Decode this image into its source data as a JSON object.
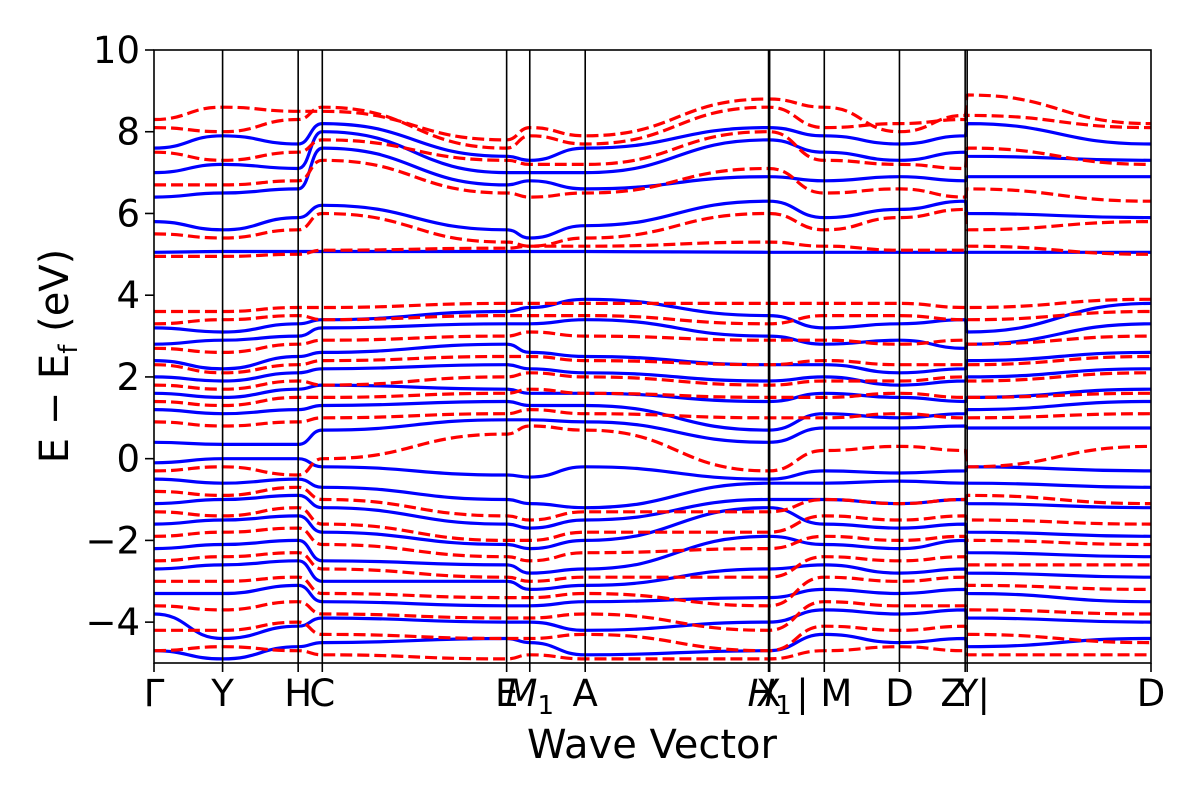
{
  "chart_data": {
    "type": "line",
    "title": "",
    "xlabel": "Wave Vector",
    "ylabel": "E − E",
    "ylabel_sub": "f",
    "ylabel_unit": " (eV)",
    "ylim": [
      -5,
      10
    ],
    "yticks": [
      -4,
      -2,
      0,
      2,
      4,
      6,
      8,
      10
    ],
    "ytick_labels": [
      "−4",
      "−2",
      "0",
      "2",
      "4",
      "6",
      "8",
      "10"
    ],
    "xlim": [
      0,
      1
    ],
    "path_ticks": [
      {
        "x": 0.0,
        "label": "Γ"
      },
      {
        "x": 0.0688,
        "label": "Y"
      },
      {
        "x": 0.1446,
        "label": "H"
      },
      {
        "x": 0.1688,
        "label": "C"
      },
      {
        "x": 0.3537,
        "label": "E"
      },
      {
        "x": 0.3769,
        "label": "M",
        "sub": "1"
      },
      {
        "x": 0.4325,
        "label": "A"
      },
      {
        "x": 0.6164,
        "label": "X"
      },
      {
        "x": 0.6175,
        "label": "H",
        "sub": "1"
      },
      {
        "x": 0.6723,
        "label": "| M"
      },
      {
        "x": 0.7477,
        "label": "D"
      },
      {
        "x": 0.8136,
        "label": "Z |"
      },
      {
        "x": 0.8156,
        "label": "Y"
      },
      {
        "x": 1.0,
        "label": "D"
      }
    ],
    "series": [
      {
        "name": "",
        "color": "#0000ff",
        "style": "solid"
      },
      {
        "name": "",
        "color": "#ff0000",
        "style": "dashed"
      }
    ],
    "bands": {
      "solid": [
        [
          5.05,
          5.07,
          5.07,
          5.07,
          5.07,
          5.07,
          5.07,
          5.05,
          5.05,
          5.05,
          5.05,
          5.05,
          5.05
        ],
        [
          5.8,
          5.6,
          5.9,
          6.2,
          5.6,
          5.4,
          5.7,
          6.3,
          5.9,
          6.1,
          6.3,
          6.0,
          5.9
        ],
        [
          6.4,
          6.5,
          6.6,
          7.6,
          6.7,
          6.8,
          6.6,
          6.9,
          6.8,
          6.9,
          6.8,
          6.9,
          6.9
        ],
        [
          7.0,
          7.2,
          7.1,
          8.0,
          7.0,
          7.0,
          7.0,
          7.8,
          7.5,
          7.3,
          7.5,
          7.4,
          7.3
        ],
        [
          7.6,
          7.9,
          7.7,
          8.2,
          7.4,
          7.3,
          7.6,
          8.1,
          7.9,
          7.7,
          7.9,
          8.2,
          7.7
        ],
        [
          3.2,
          3.1,
          3.3,
          3.4,
          3.6,
          3.7,
          3.9,
          3.5,
          3.2,
          3.3,
          3.4,
          3.1,
          3.8
        ],
        [
          2.8,
          2.9,
          3.0,
          3.2,
          3.3,
          3.3,
          3.4,
          3.0,
          2.8,
          2.9,
          2.7,
          2.8,
          3.3
        ],
        [
          2.4,
          2.2,
          2.5,
          2.6,
          2.8,
          2.6,
          2.5,
          2.3,
          2.3,
          2.1,
          2.2,
          2.4,
          2.6
        ],
        [
          2.0,
          1.9,
          2.1,
          2.2,
          2.3,
          2.2,
          2.1,
          1.9,
          2.0,
          1.8,
          1.9,
          2.0,
          2.2
        ],
        [
          1.6,
          1.5,
          1.7,
          1.8,
          1.7,
          1.6,
          1.6,
          1.4,
          1.6,
          1.5,
          1.4,
          1.5,
          1.7
        ],
        [
          1.2,
          1.1,
          1.2,
          1.3,
          1.4,
          1.3,
          1.3,
          0.7,
          1.1,
          1.0,
          1.1,
          1.2,
          1.4
        ],
        [
          0.4,
          0.35,
          0.35,
          0.7,
          0.95,
          0.95,
          0.9,
          0.4,
          0.75,
          0.75,
          0.8,
          0.75,
          0.75
        ],
        [
          -0.1,
          0.0,
          0.0,
          -0.2,
          -0.4,
          -0.45,
          -0.2,
          -0.5,
          -0.3,
          -0.35,
          -0.3,
          -0.2,
          -0.3
        ],
        [
          -0.5,
          -0.6,
          -0.5,
          -0.7,
          -1.0,
          -1.1,
          -1.2,
          -0.6,
          -0.6,
          -0.55,
          -0.6,
          -0.6,
          -0.7
        ],
        [
          -1.1,
          -1.0,
          -0.9,
          -1.2,
          -1.6,
          -1.7,
          -1.5,
          -1.0,
          -1.0,
          -1.1,
          -1.0,
          -1.1,
          -1.2
        ],
        [
          -1.6,
          -1.5,
          -1.4,
          -1.8,
          -2.1,
          -2.2,
          -2.0,
          -1.2,
          -1.6,
          -1.7,
          -1.6,
          -1.8,
          -1.9
        ],
        [
          -2.2,
          -2.1,
          -2.0,
          -2.5,
          -2.6,
          -2.8,
          -2.7,
          -1.9,
          -2.1,
          -2.2,
          -2.0,
          -2.3,
          -2.4
        ],
        [
          -2.7,
          -2.6,
          -2.5,
          -3.0,
          -3.0,
          -3.2,
          -3.1,
          -2.7,
          -2.6,
          -2.8,
          -2.7,
          -2.8,
          -2.9
        ],
        [
          -3.3,
          -3.3,
          -3.1,
          -3.5,
          -3.6,
          -3.6,
          -3.5,
          -3.4,
          -3.2,
          -3.3,
          -3.2,
          -3.3,
          -3.5
        ],
        [
          -3.8,
          -4.4,
          -4.1,
          -3.9,
          -4.0,
          -4.0,
          -4.2,
          -4.0,
          -3.7,
          -3.8,
          -3.7,
          -3.9,
          -4.0
        ],
        [
          -4.7,
          -4.9,
          -4.6,
          -4.5,
          -4.4,
          -4.5,
          -4.8,
          -4.7,
          -4.3,
          -4.5,
          -4.4,
          -4.6,
          -4.4
        ]
      ],
      "dashed": [
        [
          4.95,
          4.95,
          5.0,
          5.1,
          5.15,
          5.2,
          5.2,
          5.3,
          5.2,
          5.1,
          5.1,
          5.2,
          5.0
        ],
        [
          5.5,
          5.4,
          5.6,
          6.0,
          5.3,
          5.2,
          5.4,
          6.0,
          5.6,
          5.9,
          6.1,
          5.6,
          5.8
        ],
        [
          6.7,
          6.7,
          6.8,
          7.3,
          6.5,
          6.4,
          6.5,
          7.1,
          6.5,
          6.6,
          6.4,
          6.6,
          6.3
        ],
        [
          7.5,
          7.3,
          7.5,
          7.8,
          7.3,
          7.2,
          7.2,
          8.0,
          7.3,
          7.2,
          7.1,
          7.6,
          7.2
        ],
        [
          8.1,
          8.0,
          8.3,
          8.6,
          7.6,
          7.9,
          7.7,
          8.6,
          8.1,
          8.2,
          8.3,
          8.4,
          8.1
        ],
        [
          8.3,
          8.6,
          8.5,
          8.5,
          7.8,
          8.1,
          7.9,
          8.8,
          8.6,
          8.0,
          8.4,
          8.9,
          8.2
        ],
        [
          3.6,
          3.6,
          3.7,
          3.7,
          3.8,
          3.8,
          3.8,
          3.8,
          3.8,
          3.8,
          3.7,
          3.7,
          3.9
        ],
        [
          3.3,
          3.4,
          3.5,
          3.4,
          3.5,
          3.5,
          3.5,
          3.3,
          3.5,
          3.5,
          3.4,
          3.4,
          3.6
        ],
        [
          2.7,
          2.6,
          2.8,
          2.9,
          3.0,
          3.1,
          3.0,
          2.9,
          2.9,
          2.8,
          2.9,
          2.8,
          3.0
        ],
        [
          2.3,
          2.1,
          2.3,
          2.4,
          2.5,
          2.5,
          2.4,
          2.3,
          2.4,
          2.3,
          2.3,
          2.3,
          2.5
        ],
        [
          1.8,
          1.7,
          1.9,
          1.8,
          2.0,
          2.1,
          2.0,
          1.8,
          1.9,
          1.9,
          2.0,
          1.9,
          2.1
        ],
        [
          1.4,
          1.3,
          1.5,
          1.5,
          1.6,
          1.7,
          1.6,
          1.5,
          1.5,
          1.6,
          1.5,
          1.5,
          1.6
        ],
        [
          0.9,
          0.8,
          0.9,
          1.0,
          1.1,
          1.2,
          1.1,
          1.0,
          1.0,
          1.1,
          1.0,
          1.0,
          1.1
        ],
        [
          -0.3,
          -0.2,
          -0.4,
          0.0,
          0.6,
          0.8,
          0.7,
          -0.3,
          0.2,
          0.3,
          0.2,
          -0.2,
          0.3
        ],
        [
          -0.8,
          -0.9,
          -0.7,
          -1.0,
          -1.4,
          -1.5,
          -1.3,
          -1.3,
          -1.0,
          -1.1,
          -1.0,
          -0.9,
          -1.1
        ],
        [
          -1.3,
          -1.4,
          -1.2,
          -1.6,
          -2.0,
          -2.0,
          -1.8,
          -1.8,
          -1.4,
          -1.5,
          -1.4,
          -1.5,
          -1.6
        ],
        [
          -1.9,
          -1.8,
          -1.7,
          -2.1,
          -2.4,
          -2.5,
          -2.3,
          -2.2,
          -1.9,
          -2.0,
          -1.9,
          -2.0,
          -2.1
        ],
        [
          -2.5,
          -2.4,
          -2.3,
          -2.7,
          -2.9,
          -3.0,
          -2.9,
          -2.9,
          -2.4,
          -2.5,
          -2.4,
          -2.6,
          -2.6
        ],
        [
          -3.0,
          -3.0,
          -2.9,
          -3.3,
          -3.4,
          -3.4,
          -3.3,
          -3.6,
          -2.9,
          -3.0,
          -2.9,
          -3.1,
          -3.2
        ],
        [
          -3.6,
          -3.7,
          -3.5,
          -3.8,
          -3.9,
          -3.9,
          -3.8,
          -4.2,
          -3.5,
          -3.6,
          -3.6,
          -3.7,
          -3.8
        ],
        [
          -4.2,
          -4.2,
          -4.0,
          -4.3,
          -4.4,
          -4.4,
          -4.3,
          -4.7,
          -4.1,
          -4.2,
          -4.1,
          -4.3,
          -4.5
        ],
        [
          -4.7,
          -4.6,
          -4.7,
          -4.8,
          -4.9,
          -4.8,
          -4.9,
          -4.9,
          -4.7,
          -4.6,
          -4.7,
          -4.8,
          -4.8
        ]
      ]
    },
    "grid": false,
    "legend": "none"
  }
}
